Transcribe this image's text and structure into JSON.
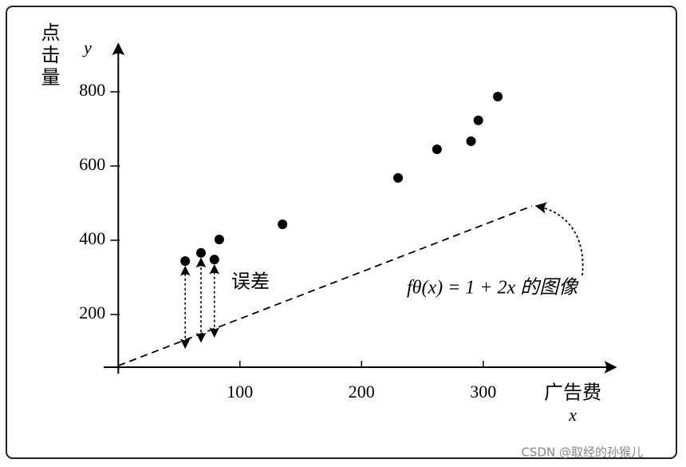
{
  "chart_data": {
    "type": "scatter",
    "x": [
      55,
      68,
      79,
      83,
      135,
      230,
      262,
      290,
      296,
      312
    ],
    "values": [
      344,
      366,
      348,
      402,
      443,
      568,
      645,
      667,
      723,
      787
    ],
    "color": "#000000",
    "xlim": [
      -12,
      409
    ],
    "ylim": [
      58,
      929
    ],
    "xticks": [
      100,
      200,
      300
    ],
    "yticks": [
      200,
      400,
      600,
      800
    ],
    "x_label": "广告费",
    "x_symbol": "x",
    "y_label": "点击量",
    "y_symbol": "y",
    "fit_line": {
      "x": [
        0,
        340
      ],
      "values": [
        62,
        492
      ]
    },
    "error_points": [
      0,
      1,
      2
    ],
    "error_annotation": "误差",
    "line_annotation": "fθ(x) = 1 + 2x 的图像",
    "watermark": "CSDN @取经的孙猴儿"
  }
}
